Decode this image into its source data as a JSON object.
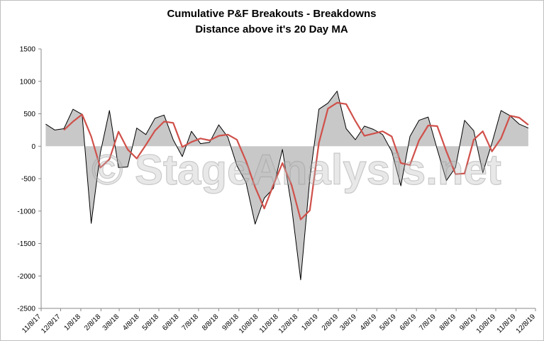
{
  "chart_data": {
    "type": "line",
    "title": "Cumulative P&F Breakouts - Breakdowns",
    "subtitle": "Distance above it's 20 Day MA",
    "watermark": "© StageAnalysis.net",
    "x": [
      "11/15/17",
      "11/29/17",
      "12/13/17",
      "12/27/17",
      "1/10/18",
      "1/24/18",
      "2/7/18",
      "2/21/18",
      "3/7/18",
      "3/21/18",
      "4/4/18",
      "4/18/18",
      "5/2/18",
      "5/16/18",
      "5/30/18",
      "6/13/18",
      "6/27/18",
      "7/11/18",
      "7/25/18",
      "8/8/18",
      "8/22/18",
      "9/5/18",
      "9/19/18",
      "10/3/18",
      "10/17/18",
      "10/31/18",
      "11/14/18",
      "11/28/18",
      "12/12/18",
      "12/26/18",
      "1/9/19",
      "1/23/19",
      "2/6/19",
      "2/20/19",
      "3/6/19",
      "3/20/19",
      "4/3/19",
      "4/17/19",
      "5/1/19",
      "5/15/19",
      "5/29/19",
      "6/12/19",
      "6/26/19",
      "7/10/19",
      "7/24/19",
      "8/7/19",
      "8/21/19",
      "9/4/19",
      "9/18/19",
      "10/2/19",
      "10/16/19",
      "10/30/19",
      "11/13/19",
      "11/27/19"
    ],
    "series": [
      {
        "color": "#000000",
        "fill": "#c8c8c8",
        "values": [
          340,
          250,
          270,
          570,
          490,
          -1190,
          -100,
          550,
          -330,
          -320,
          280,
          180,
          430,
          480,
          100,
          -160,
          230,
          40,
          60,
          330,
          140,
          -300,
          -560,
          -1200,
          -800,
          -650,
          -50,
          -930,
          -2060,
          -500,
          570,
          665,
          850,
          270,
          100,
          310,
          260,
          180,
          -80,
          -610,
          150,
          400,
          450,
          -50,
          -530,
          -330,
          400,
          240,
          -410,
          50,
          550,
          470,
          340,
          280
        ]
      },
      {
        "color": "#d0504a",
        "values": [
          null,
          null,
          250,
          380,
          490,
          150,
          -330,
          -200,
          225,
          -50,
          -190,
          20,
          240,
          380,
          360,
          -10,
          65,
          120,
          90,
          160,
          180,
          100,
          -230,
          -630,
          -960,
          -600,
          -260,
          -600,
          -1130,
          -990,
          50,
          580,
          670,
          650,
          390,
          160,
          195,
          230,
          150,
          -260,
          -290,
          90,
          320,
          310,
          -80,
          -430,
          -420,
          100,
          230,
          -80,
          120,
          470,
          440,
          330
        ]
      }
    ],
    "xlim": [
      "11/8/17",
      "12/8/19"
    ],
    "xticks": [
      "11/8/17",
      "12/8/17",
      "1/8/18",
      "2/8/18",
      "3/8/18",
      "4/8/18",
      "5/8/18",
      "6/8/18",
      "7/8/18",
      "8/8/18",
      "9/8/18",
      "10/8/18",
      "11/8/18",
      "12/8/18",
      "1/8/19",
      "2/8/19",
      "3/8/19",
      "4/8/19",
      "5/8/19",
      "6/8/19",
      "7/8/19",
      "8/8/19",
      "9/8/19",
      "10/8/19",
      "11/8/19",
      "12/8/19"
    ],
    "ylim": [
      -2500,
      1500
    ],
    "yticks": [
      -2500,
      -2000,
      -1500,
      -1000,
      -500,
      0,
      500,
      1000,
      1500
    ],
    "grid": false
  }
}
